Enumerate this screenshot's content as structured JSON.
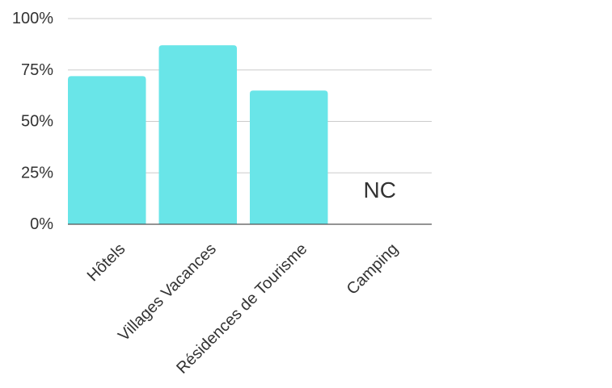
{
  "chart_data": {
    "type": "bar",
    "categories": [
      "Hôtels",
      "Villages Vacances",
      "Résidences de Tourisme",
      "Camping"
    ],
    "values": [
      72,
      87,
      65,
      null
    ],
    "value_labels": [
      "",
      "",
      "",
      "NC"
    ],
    "yticks": [
      "0%",
      "25%",
      "50%",
      "75%",
      "100%"
    ],
    "ytick_values": [
      0,
      25,
      50,
      75,
      100
    ],
    "ylim": [
      0,
      100
    ],
    "grid": true,
    "bar_color": "#69e5e8",
    "title": "",
    "xlabel": "",
    "ylabel": ""
  }
}
